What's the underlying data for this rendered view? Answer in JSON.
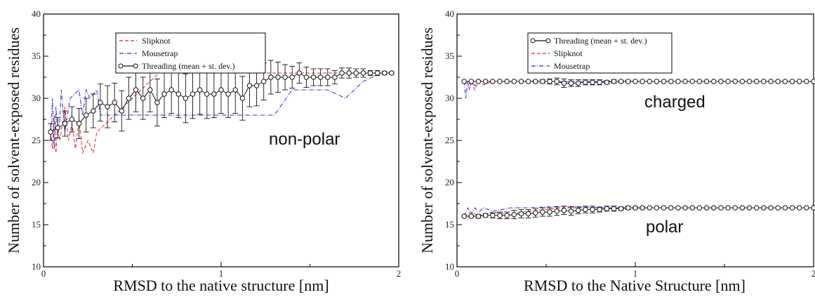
{
  "colors": {
    "slipknot": "#e0262b",
    "mousetrap": "#2b2bd4",
    "threading": "#111111",
    "axis": "#000000"
  },
  "chart_data": [
    {
      "type": "line",
      "xlabel": "RMSD to the native structure [nm]",
      "ylabel": "Number of solvent-exposed residues",
      "xlim": [
        0,
        2
      ],
      "ylim": [
        10,
        40
      ],
      "x_ticks": [
        "0",
        "1",
        "2"
      ],
      "y_ticks": [
        "10",
        "15",
        "20",
        "25",
        "30",
        "35",
        "40"
      ],
      "legend_position": "top-center",
      "annotations": [
        {
          "text": "non-polar",
          "x": 1.5,
          "y": 25.3
        }
      ],
      "series": [
        {
          "name": "Slipknot",
          "style": "dashed",
          "x": [
            0.04,
            0.05,
            0.06,
            0.07,
            0.08,
            0.09,
            0.1,
            0.12,
            0.14,
            0.16,
            0.18,
            0.2,
            0.22,
            0.25,
            0.28,
            0.3,
            0.35,
            0.4,
            0.45,
            0.5,
            0.55,
            0.6,
            0.65,
            0.7,
            0.8,
            0.9,
            1.0,
            1.2,
            1.4,
            1.6,
            1.8,
            1.95
          ],
          "y": [
            26,
            24,
            28,
            23.5,
            27,
            25,
            26,
            29,
            25,
            27,
            24,
            27.5,
            23.5,
            25,
            23.5,
            26,
            27,
            28,
            29,
            30,
            31,
            32,
            33,
            34,
            33.5,
            33,
            33,
            33,
            33,
            33,
            33,
            33
          ]
        },
        {
          "name": "Mousetrap",
          "style": "dashdot",
          "x": [
            0.04,
            0.05,
            0.06,
            0.07,
            0.08,
            0.09,
            0.1,
            0.12,
            0.15,
            0.2,
            0.22,
            0.24,
            0.26,
            0.3,
            0.32,
            0.4,
            0.5,
            0.6,
            0.7,
            0.8,
            0.9,
            1.0,
            1.1,
            1.2,
            1.25,
            1.3,
            1.4,
            1.5,
            1.6,
            1.7,
            1.8,
            1.9,
            1.97
          ],
          "y": [
            25,
            30,
            24,
            29,
            26,
            27,
            31,
            26,
            30,
            31,
            28,
            31,
            30,
            31,
            28,
            28,
            28,
            28,
            28,
            28,
            28,
            28,
            28,
            28,
            28,
            28,
            31,
            31,
            31,
            30,
            32,
            33,
            33
          ]
        },
        {
          "name": "Threading (mean + st. dev.)",
          "style": "solid-circles",
          "x": [
            0.04,
            0.08,
            0.12,
            0.16,
            0.2,
            0.24,
            0.28,
            0.32,
            0.36,
            0.4,
            0.44,
            0.48,
            0.52,
            0.56,
            0.6,
            0.64,
            0.68,
            0.72,
            0.76,
            0.8,
            0.84,
            0.88,
            0.92,
            0.96,
            1.0,
            1.04,
            1.08,
            1.12,
            1.16,
            1.2,
            1.24,
            1.28,
            1.32,
            1.36,
            1.4,
            1.44,
            1.48,
            1.52,
            1.56,
            1.6,
            1.64,
            1.68,
            1.72,
            1.76,
            1.8,
            1.84,
            1.88,
            1.92,
            1.96
          ],
          "y": [
            26,
            26.5,
            27,
            27.5,
            27,
            28,
            28.5,
            29.5,
            29,
            29.5,
            28.5,
            30,
            31,
            30,
            31,
            29.5,
            30.5,
            31,
            30.5,
            30,
            30.5,
            31,
            30.5,
            30.5,
            31,
            30.5,
            31,
            30,
            31.5,
            31.5,
            32,
            32.5,
            32.5,
            32.5,
            32.5,
            33,
            32.5,
            32.5,
            32.5,
            32.5,
            32.5,
            33,
            33,
            33,
            33,
            33,
            33,
            33,
            33
          ],
          "err": [
            1,
            1.2,
            1.5,
            1.5,
            1.8,
            2,
            2,
            2.2,
            2.5,
            2.3,
            2.4,
            2.5,
            2.6,
            2.5,
            2.6,
            2.8,
            2.8,
            2.8,
            2.8,
            2.9,
            2.9,
            2.9,
            2.9,
            2.8,
            2.8,
            2.8,
            2.8,
            2.6,
            2.5,
            2.4,
            2.2,
            2,
            1.8,
            1.5,
            1.3,
            1.2,
            1.2,
            1,
            1,
            1,
            0.8,
            0.6,
            0.6,
            0.5,
            0.5,
            0.3,
            0.3,
            0.2,
            0.1
          ]
        }
      ]
    },
    {
      "type": "line",
      "xlabel": "RMSD to the Native Structure [nm]",
      "ylabel": "Number of solvent-exposed residues",
      "xlim": [
        0,
        2
      ],
      "ylim": [
        10,
        40
      ],
      "x_ticks": [
        "0",
        "1",
        "2"
      ],
      "y_ticks": [
        "10",
        "15",
        "20",
        "25",
        "30",
        "35",
        "40"
      ],
      "legend_position": "top-center",
      "annotations": [
        {
          "text": "charged",
          "x": 1.2,
          "y": 29.8
        },
        {
          "text": "polar",
          "x": 1.15,
          "y": 14.2
        }
      ],
      "series": [
        {
          "name": "Threading (mean + st. dev.)",
          "group": "charged",
          "style": "solid-circles",
          "x": [
            0.04,
            0.08,
            0.12,
            0.16,
            0.2,
            0.24,
            0.28,
            0.32,
            0.36,
            0.4,
            0.44,
            0.48,
            0.52,
            0.56,
            0.6,
            0.64,
            0.68,
            0.72,
            0.76,
            0.8,
            0.84,
            0.88,
            0.92,
            0.96,
            1.0,
            1.04,
            1.08,
            1.12,
            1.16,
            1.2,
            1.24,
            1.28,
            1.32,
            1.36,
            1.4,
            1.44,
            1.48,
            1.52,
            1.56,
            1.6,
            1.64,
            1.68,
            1.72,
            1.76,
            1.8,
            1.84,
            1.88,
            1.92,
            1.96,
            2.0
          ],
          "y": [
            32,
            32,
            32,
            32,
            32,
            32,
            32,
            32,
            32,
            32,
            32,
            32,
            32,
            32,
            31.8,
            31.8,
            31.8,
            31.9,
            31.9,
            31.9,
            31.9,
            32,
            32,
            32,
            32,
            32,
            32,
            32,
            32,
            32,
            32,
            32,
            32,
            32,
            32,
            32,
            32,
            32,
            32,
            32,
            32,
            32,
            32,
            32,
            32,
            32,
            32,
            32,
            32,
            32
          ],
          "err": [
            0,
            0,
            0,
            0,
            0,
            0,
            0,
            0,
            0,
            0,
            0.1,
            0.2,
            0.3,
            0.4,
            0.5,
            0.4,
            0.4,
            0.3,
            0.3,
            0.3,
            0.2,
            0.2,
            0.1,
            0.1,
            0,
            0,
            0,
            0,
            0,
            0,
            0,
            0,
            0,
            0,
            0,
            0,
            0,
            0,
            0,
            0,
            0,
            0,
            0,
            0,
            0,
            0,
            0,
            0,
            0,
            0
          ]
        },
        {
          "name": "Slipknot",
          "group": "charged",
          "style": "dashed",
          "x": [
            0.04,
            0.06,
            0.08,
            0.1,
            0.12,
            0.15,
            0.2,
            0.3,
            0.5,
            1.0,
            1.5,
            2.0
          ],
          "y": [
            32,
            31.5,
            32,
            31,
            32,
            31.6,
            32,
            32,
            32,
            32,
            32,
            32
          ]
        },
        {
          "name": "Mousetrap",
          "group": "charged",
          "style": "dashdot",
          "x": [
            0.04,
            0.05,
            0.06,
            0.07,
            0.08,
            0.1,
            0.12,
            0.15,
            0.2,
            0.5,
            1.0,
            1.5,
            2.0
          ],
          "y": [
            32,
            30,
            32,
            31,
            32,
            31.5,
            32,
            32,
            32,
            32,
            32,
            32,
            32
          ]
        },
        {
          "name": "Threading (mean + st. dev.)",
          "group": "polar",
          "style": "solid-circles",
          "x": [
            0.04,
            0.08,
            0.12,
            0.16,
            0.2,
            0.24,
            0.28,
            0.32,
            0.36,
            0.4,
            0.44,
            0.48,
            0.52,
            0.56,
            0.6,
            0.64,
            0.68,
            0.72,
            0.76,
            0.8,
            0.84,
            0.88,
            0.92,
            0.96,
            1.0,
            1.04,
            1.08,
            1.12,
            1.16,
            1.2,
            1.24,
            1.28,
            1.32,
            1.36,
            1.4,
            1.44,
            1.48,
            1.52,
            1.56,
            1.6,
            1.64,
            1.68,
            1.72,
            1.76,
            1.8,
            1.84,
            1.88,
            1.92,
            1.96,
            2.0
          ],
          "y": [
            16,
            16,
            16,
            16.1,
            16.1,
            16.1,
            16.1,
            16.2,
            16.3,
            16.3,
            16.4,
            16.5,
            16.5,
            16.6,
            16.7,
            16.6,
            16.7,
            16.8,
            16.8,
            16.8,
            16.9,
            16.9,
            16.9,
            17,
            17,
            17,
            17,
            17,
            17,
            17,
            17,
            17,
            17,
            17,
            17,
            17,
            17,
            17,
            17,
            17,
            17,
            17,
            17,
            17,
            17,
            17,
            17,
            17,
            17,
            17
          ],
          "err": [
            0,
            0.1,
            0.2,
            0.2,
            0.3,
            0.4,
            0.4,
            0.5,
            0.5,
            0.5,
            0.5,
            0.5,
            0.5,
            0.5,
            0.5,
            0.5,
            0.4,
            0.4,
            0.4,
            0.3,
            0.3,
            0.3,
            0.2,
            0.2,
            0.1,
            0.1,
            0,
            0,
            0,
            0,
            0,
            0,
            0,
            0,
            0,
            0,
            0,
            0,
            0,
            0,
            0,
            0,
            0,
            0,
            0,
            0,
            0,
            0,
            0,
            0
          ]
        },
        {
          "name": "Slipknot",
          "group": "polar",
          "style": "dashed",
          "x": [
            0.04,
            0.08,
            0.12,
            0.2,
            0.3,
            0.4,
            0.6,
            0.8,
            1.0,
            1.5,
            2.0
          ],
          "y": [
            16,
            16.5,
            16,
            16.5,
            16.2,
            16.6,
            17,
            17,
            17,
            17,
            17
          ]
        },
        {
          "name": "Mousetrap",
          "group": "polar",
          "style": "dashdot",
          "x": [
            0.04,
            0.06,
            0.08,
            0.1,
            0.12,
            0.15,
            0.2,
            0.3,
            0.4,
            0.6,
            0.8,
            1.0,
            1.5,
            2.0
          ],
          "y": [
            16,
            17,
            16.2,
            17,
            16.5,
            17,
            16.6,
            17,
            17,
            17.2,
            17,
            17,
            17,
            17
          ]
        }
      ]
    }
  ]
}
